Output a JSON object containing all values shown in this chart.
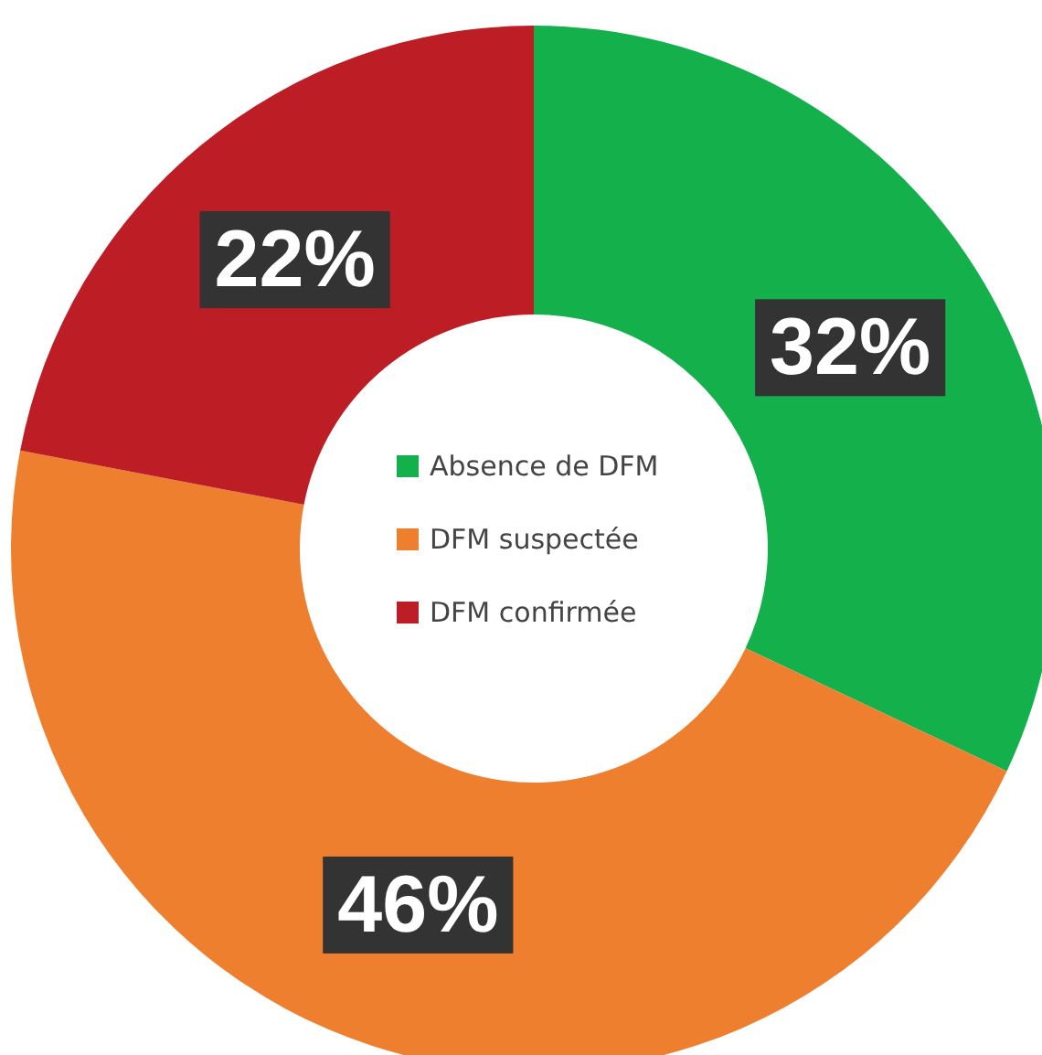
{
  "chart_data": {
    "type": "donut",
    "categories": [
      "Absence de DFM",
      "DFM suspectée",
      "DFM confirmée"
    ],
    "values": [
      32,
      46,
      22
    ],
    "colors": [
      "#13b04b",
      "#ee7f2e",
      "#bd1d25"
    ],
    "value_labels": [
      "32%",
      "46%",
      "22%"
    ],
    "legend": "center"
  }
}
